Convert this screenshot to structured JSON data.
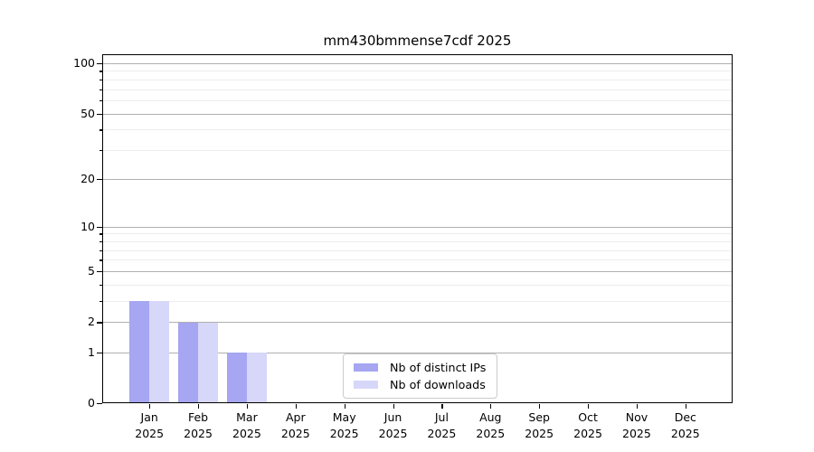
{
  "title": "mm430bmmense7cdf 2025",
  "colors": {
    "distinct_ips_bar": "#a6a6f2",
    "downloads_bar": "#d7d7f9",
    "major_gridline": "#b0b0b0",
    "minor_gridline": "#ececec",
    "axis_spine": "#000000",
    "legend_border": "#cbcbcb"
  },
  "legend": {
    "items": [
      {
        "label": "Nb of distinct IPs",
        "color": "#a6a6f2"
      },
      {
        "label": "Nb of downloads",
        "color": "#d7d7f9"
      }
    ]
  },
  "y_axis": {
    "tick_labels": [
      "100",
      "50",
      "20",
      "10",
      "5",
      "2",
      "1",
      "0"
    ],
    "tick_values": [
      100,
      50,
      20,
      10,
      5,
      2,
      1,
      0
    ],
    "minor_gridline_values": [
      3,
      4,
      6,
      7,
      8,
      9,
      30,
      40,
      60,
      70,
      80,
      90
    ]
  },
  "x_axis": {
    "categories": [
      {
        "month": "Jan",
        "year": "2025"
      },
      {
        "month": "Feb",
        "year": "2025"
      },
      {
        "month": "Mar",
        "year": "2025"
      },
      {
        "month": "Apr",
        "year": "2025"
      },
      {
        "month": "May",
        "year": "2025"
      },
      {
        "month": "Jun",
        "year": "2025"
      },
      {
        "month": "Jul",
        "year": "2025"
      },
      {
        "month": "Aug",
        "year": "2025"
      },
      {
        "month": "Sep",
        "year": "2025"
      },
      {
        "month": "Oct",
        "year": "2025"
      },
      {
        "month": "Nov",
        "year": "2025"
      },
      {
        "month": "Dec",
        "year": "2025"
      }
    ]
  },
  "chart_data": {
    "type": "bar",
    "title": "mm430bmmense7cdf 2025",
    "categories": [
      "Jan 2025",
      "Feb 2025",
      "Mar 2025",
      "Apr 2025",
      "May 2025",
      "Jun 2025",
      "Jul 2025",
      "Aug 2025",
      "Sep 2025",
      "Oct 2025",
      "Nov 2025",
      "Dec 2025"
    ],
    "series": [
      {
        "name": "Nb of distinct IPs",
        "color": "#a6a6f2",
        "values": [
          3,
          2,
          1,
          0,
          0,
          0,
          0,
          0,
          0,
          0,
          0,
          0
        ]
      },
      {
        "name": "Nb of downloads",
        "color": "#d7d7f9",
        "values": [
          3,
          2,
          1,
          0,
          0,
          0,
          0,
          0,
          0,
          0,
          0,
          0
        ]
      }
    ],
    "xlabel": "",
    "ylabel": "",
    "y_scale": "log10(1+value)",
    "y_major_ticks": [
      0,
      1,
      2,
      5,
      10,
      20,
      50,
      100
    ],
    "ylim": [
      0,
      115
    ],
    "grid": true,
    "legend_position": "lower-center-left"
  }
}
